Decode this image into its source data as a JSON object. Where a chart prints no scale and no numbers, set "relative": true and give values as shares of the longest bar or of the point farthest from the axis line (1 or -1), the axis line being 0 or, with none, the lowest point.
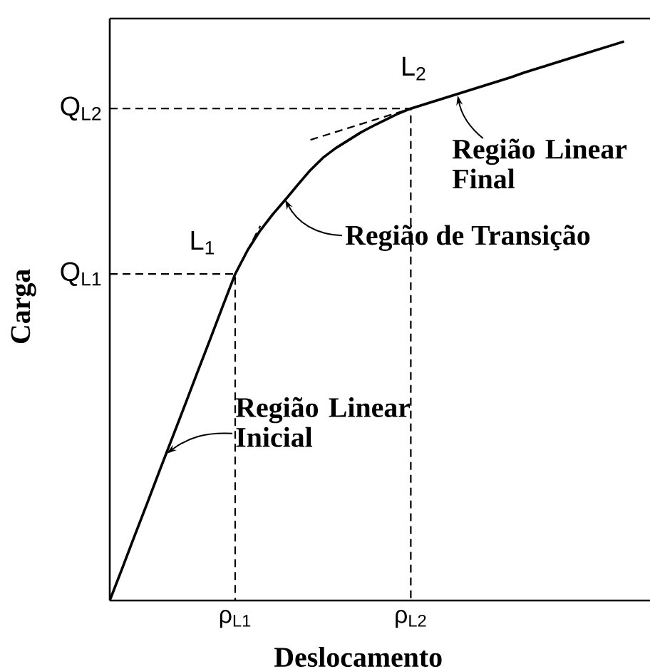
{
  "chart_data": {
    "type": "line",
    "relative": true,
    "line_style": "solid",
    "xlabel": "Deslocamento",
    "ylabel": "Carga",
    "categories": [
      null,
      null,
      null,
      null,
      null,
      null,
      null,
      null,
      null,
      null,
      "ρ$_{L1}$",
      null,
      null,
      null,
      null,
      null,
      null,
      null,
      null,
      null,
      null,
      null,
      null,
      null,
      "ρ$_{L2}$",
      null,
      null,
      null,
      null,
      null,
      null,
      null,
      null,
      null,
      null,
      null,
      null,
      null,
      null,
      null,
      null,
      null
    ],
    "series": [
      {
        "color": "#000000",
        "values": [
          0,
          0.058,
          0.117,
          0.175,
          0.234,
          0.292,
          0.35,
          0.409,
          0.467,
          0.526,
          0.584,
          0.627,
          0.662,
          0.691,
          0.717,
          0.744,
          0.77,
          0.792,
          0.809,
          0.823,
          0.837,
          0.849,
          0.86,
          0.871,
          0.88,
          0.887,
          0.894,
          0.901,
          0.908,
          0.915,
          0.922,
          0.929,
          0.936,
          0.944,
          0.951,
          0.958,
          0.965,
          0.972,
          0.979,
          0.986,
          0.993,
          1
        ]
      },
      {
        "color": "#000000",
        "line_style": "dashed",
        "values": [
          null,
          null,
          null,
          null,
          null,
          null,
          null,
          null,
          null,
          null,
          0.584,
          0.627,
          0.67,
          null,
          null,
          null,
          null,
          null,
          null,
          null,
          null,
          null,
          null,
          null,
          null,
          null,
          null,
          null,
          null,
          null,
          null,
          null,
          null,
          null,
          null,
          null,
          null,
          null,
          null,
          null,
          null,
          null
        ]
      },
      {
        "color": "#000000",
        "line_style": "dashed",
        "values": [
          null,
          null,
          null,
          null,
          null,
          null,
          null,
          null,
          null,
          null,
          null,
          null,
          null,
          null,
          null,
          null,
          0.824,
          0.831,
          0.838,
          0.845,
          0.852,
          0.859,
          0.866,
          0.873,
          0.88,
          null,
          null,
          null,
          null,
          null,
          null,
          null,
          null,
          null,
          null,
          null,
          null,
          null,
          null,
          null,
          null,
          null
        ]
      }
    ],
    "ref_lines": [
      {
        "axis": "y",
        "value": 0.584,
        "label": "Q$_{L1}$",
        "line_style": "dashed"
      },
      {
        "axis": "y",
        "value": 0.88,
        "label": "Q$_{L2}$",
        "line_style": "dashed"
      }
    ],
    "annotations": [
      {
        "text": "L$_{1}$",
        "y": 0.584
      },
      {
        "text": "L$_{2}$",
        "y": 0.88
      },
      "Região de Transição",
      "Região Linear Final",
      "Região Linear Inicial"
    ]
  }
}
